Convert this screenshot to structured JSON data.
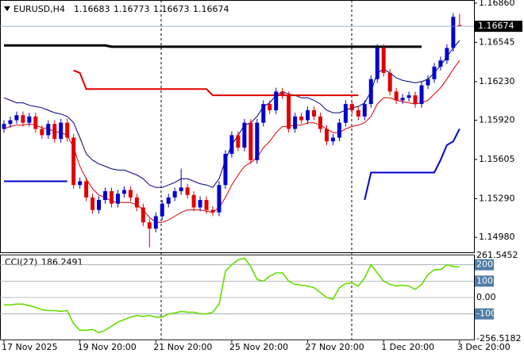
{
  "chart_data": [
    {
      "type": "candlestick",
      "symbol": "EURUSD,H4",
      "up_color": "#0000cc",
      "down_color": "#e00000",
      "ylim": [
        1.1486,
        1.16885
      ],
      "yticks": [
        {
          "value": 1.1686,
          "label": "1.16860"
        },
        {
          "value": 1.16545,
          "label": "1.16545"
        },
        {
          "value": 1.1623,
          "label": "1.16230"
        },
        {
          "value": 1.1592,
          "label": "1.15920"
        },
        {
          "value": 1.15605,
          "label": "1.15605"
        },
        {
          "value": 1.1529,
          "label": "1.15290"
        },
        {
          "value": 1.1498,
          "label": "1.14980"
        }
      ],
      "categories": [
        "17 Nov 2025",
        null,
        null,
        null,
        null,
        null,
        null,
        null,
        null,
        null,
        null,
        null,
        "19 Nov 20:00",
        null,
        null,
        null,
        null,
        null,
        null,
        null,
        null,
        null,
        null,
        null,
        "21 Nov 20:00",
        null,
        null,
        null,
        null,
        null,
        null,
        null,
        null,
        null,
        null,
        null,
        "25 Nov 20:00",
        null,
        null,
        null,
        null,
        null,
        null,
        null,
        null,
        null,
        null,
        null,
        "27 Nov 20:00",
        null,
        null,
        null,
        null,
        null,
        null,
        null,
        null,
        null,
        null,
        null,
        "1 Dec 20:00",
        null,
        null,
        null,
        null,
        null,
        null,
        null,
        null,
        null,
        null,
        null,
        "3 Dec 20:00"
      ],
      "open": [
        1.1585,
        1.1589,
        1.1592,
        1.1596,
        1.159,
        1.1595,
        1.1585,
        1.158,
        1.1589,
        1.1577,
        1.159,
        1.1578,
        1.154,
        1.1543,
        1.153,
        1.152,
        1.1528,
        1.1535,
        1.1525,
        1.1533,
        1.1536,
        1.153,
        1.1522,
        1.151,
        1.1505,
        1.1515,
        1.1525,
        1.153,
        1.1535,
        1.1538,
        1.1532,
        1.1522,
        1.1528,
        1.152,
        1.1518,
        1.154,
        1.1565,
        1.158,
        1.157,
        1.159,
        1.156,
        1.159,
        1.1605,
        1.16,
        1.1615,
        1.1612,
        1.1585,
        1.1595,
        1.1592,
        1.16,
        1.1595,
        1.1585,
        1.1575,
        1.1578,
        1.159,
        1.1605,
        1.16,
        1.1595,
        1.1605,
        1.1625,
        1.165,
        1.163,
        1.1615,
        1.1608,
        1.161,
        1.1612,
        1.1605,
        1.162,
        1.1625,
        1.1635,
        1.164,
        1.165,
        1.16683
      ],
      "high": [
        1.1592,
        1.1595,
        1.1599,
        1.1599,
        1.1598,
        1.1598,
        1.1588,
        1.1592,
        1.1592,
        1.1593,
        1.1593,
        1.1581,
        1.1546,
        1.1546,
        1.1533,
        1.1531,
        1.1538,
        1.1538,
        1.1536,
        1.1539,
        1.1539,
        1.1533,
        1.1525,
        1.1513,
        1.1518,
        1.1528,
        1.1533,
        1.1538,
        1.1553,
        1.1541,
        1.1535,
        1.1531,
        1.1531,
        1.1523,
        1.1543,
        1.1568,
        1.1583,
        1.1583,
        1.1593,
        1.1593,
        1.1593,
        1.1608,
        1.1608,
        1.1618,
        1.1618,
        1.1615,
        1.1598,
        1.1598,
        1.1603,
        1.1603,
        1.1598,
        1.1588,
        1.1581,
        1.1593,
        1.1608,
        1.1608,
        1.1603,
        1.1608,
        1.1628,
        1.1653,
        1.1653,
        1.1633,
        1.1618,
        1.1613,
        1.1615,
        1.1615,
        1.1623,
        1.1628,
        1.1638,
        1.1643,
        1.1653,
        1.1678,
        1.16773
      ],
      "low": [
        1.1582,
        1.1586,
        1.1589,
        1.1587,
        1.1587,
        1.1582,
        1.1577,
        1.1577,
        1.1574,
        1.1574,
        1.1575,
        1.1537,
        1.1537,
        1.1527,
        1.1517,
        1.1517,
        1.1525,
        1.1522,
        1.1522,
        1.153,
        1.1527,
        1.1519,
        1.1507,
        1.149,
        1.1502,
        1.1512,
        1.1522,
        1.1527,
        1.1532,
        1.1529,
        1.1519,
        1.1519,
        1.1517,
        1.1515,
        1.1515,
        1.1537,
        1.1562,
        1.1567,
        1.1567,
        1.1557,
        1.1557,
        1.1587,
        1.1597,
        1.1597,
        1.1609,
        1.1582,
        1.1582,
        1.1589,
        1.1589,
        1.1592,
        1.1582,
        1.1572,
        1.1572,
        1.1575,
        1.1587,
        1.1597,
        1.1592,
        1.1592,
        1.1602,
        1.1622,
        1.1627,
        1.1612,
        1.1605,
        1.1605,
        1.1607,
        1.1602,
        1.1602,
        1.1617,
        1.1622,
        1.1632,
        1.1637,
        1.1647,
        1.16673
      ],
      "close": [
        1.1589,
        1.1592,
        1.1596,
        1.159,
        1.1595,
        1.1585,
        1.158,
        1.1589,
        1.1577,
        1.159,
        1.1578,
        1.154,
        1.1543,
        1.153,
        1.152,
        1.1528,
        1.1535,
        1.1525,
        1.1533,
        1.1536,
        1.153,
        1.1522,
        1.151,
        1.1505,
        1.1515,
        1.1525,
        1.153,
        1.1535,
        1.1538,
        1.1532,
        1.1522,
        1.1528,
        1.152,
        1.1518,
        1.154,
        1.1565,
        1.158,
        1.157,
        1.159,
        1.156,
        1.159,
        1.1605,
        1.16,
        1.1615,
        1.1612,
        1.1585,
        1.1595,
        1.1592,
        1.16,
        1.1595,
        1.1585,
        1.1575,
        1.1578,
        1.159,
        1.1605,
        1.16,
        1.1595,
        1.1605,
        1.1625,
        1.165,
        1.163,
        1.1615,
        1.1608,
        1.161,
        1.1612,
        1.1605,
        1.162,
        1.1625,
        1.1635,
        1.164,
        1.165,
        1.1675,
        1.16674
      ],
      "overlays": [
        {
          "kind": "band",
          "color": "#000080",
          "values": [
            1.161,
            1.1608,
            1.1606,
            1.1606,
            1.1604,
            1.1603,
            1.1602,
            1.16,
            1.1598,
            1.1597,
            1.1595,
            1.159,
            1.1578,
            1.1565,
            1.156,
            1.1557,
            1.1555,
            1.1553,
            1.1552,
            1.1552,
            1.155,
            1.1548,
            1.1545,
            1.154,
            1.1538,
            1.1538,
            1.154,
            1.1542,
            1.1545,
            1.1545,
            1.1543,
            1.1541,
            1.154,
            1.1538,
            1.1545,
            1.156,
            1.1572,
            1.158,
            1.1588,
            1.159,
            1.1595,
            1.1603,
            1.1606,
            1.1612,
            1.1615,
            1.1613,
            1.1612,
            1.161,
            1.161,
            1.1608,
            1.1605,
            1.16,
            1.1598,
            1.1598,
            1.16,
            1.1602,
            1.1603,
            1.1606,
            1.1615,
            1.163,
            1.1633,
            1.163,
            1.1626,
            1.1624,
            1.1623,
            1.1622,
            1.1623,
            1.1625,
            1.163,
            1.1636,
            1.1643,
            1.165,
            1.1656
          ]
        },
        {
          "kind": "band",
          "color": "#dd0000",
          "values": [
            1.1585,
            1.1587,
            1.1588,
            1.1588,
            1.1589,
            1.1588,
            1.1586,
            1.1585,
            1.1583,
            1.1582,
            1.158,
            1.157,
            1.1555,
            1.1545,
            1.1537,
            1.1532,
            1.153,
            1.1527,
            1.1526,
            1.1526,
            1.1526,
            1.1524,
            1.152,
            1.1514,
            1.151,
            1.151,
            1.1512,
            1.1515,
            1.1518,
            1.152,
            1.152,
            1.152,
            1.1519,
            1.1518,
            1.1522,
            1.153,
            1.154,
            1.1548,
            1.1555,
            1.1558,
            1.1562,
            1.157,
            1.1575,
            1.1582,
            1.1587,
            1.1587,
            1.1588,
            1.1588,
            1.159,
            1.159,
            1.1588,
            1.1585,
            1.1582,
            1.1582,
            1.1585,
            1.1587,
            1.1588,
            1.159,
            1.1595,
            1.1605,
            1.161,
            1.161,
            1.1608,
            1.1607,
            1.1606,
            1.1605,
            1.1606,
            1.1608,
            1.1613,
            1.1618,
            1.1625,
            1.1633,
            1.164
          ]
        },
        {
          "kind": "stop",
          "color": "#dd0000",
          "values": [
            null,
            null,
            null,
            null,
            null,
            null,
            null,
            null,
            null,
            null,
            null,
            1.1632,
            1.163,
            1.1617,
            1.1617,
            1.1617,
            1.1617,
            1.1617,
            1.1617,
            1.1617,
            1.1617,
            1.1617,
            1.1617,
            1.1617,
            1.1617,
            1.1617,
            1.1617,
            1.1617,
            1.1617,
            1.1617,
            1.1617,
            1.1617,
            1.1617,
            1.1612,
            1.1612,
            1.1612,
            1.1612,
            1.1612,
            1.1612,
            1.1612,
            1.1612,
            1.1612,
            1.1612,
            1.1612,
            1.1612,
            1.1612,
            1.1612,
            1.1612,
            1.1612,
            1.1612,
            1.1612,
            1.1612,
            1.1612,
            1.1612,
            1.1612,
            1.1612,
            1.1612,
            null,
            null,
            null,
            null,
            null,
            null,
            null,
            null,
            null,
            null,
            null,
            null,
            null,
            null,
            null,
            null
          ]
        },
        {
          "kind": "stop",
          "color": "#0000cc",
          "values": [
            1.1543,
            1.1543,
            1.1543,
            1.1543,
            1.1543,
            1.1543,
            1.1543,
            1.1543,
            1.1543,
            1.1543,
            1.1543,
            null,
            null,
            null,
            null,
            null,
            null,
            null,
            null,
            null,
            null,
            null,
            null,
            null,
            null,
            null,
            null,
            null,
            null,
            null,
            null,
            null,
            null,
            null,
            null,
            null,
            null,
            null,
            null,
            null,
            null,
            null,
            null,
            null,
            null,
            null,
            null,
            null,
            null,
            null,
            null,
            null,
            null,
            null,
            null,
            null,
            null,
            1.1528,
            1.155,
            1.155,
            1.155,
            1.155,
            1.155,
            1.155,
            1.155,
            1.155,
            1.155,
            1.155,
            1.155,
            1.156,
            1.1572,
            1.1575,
            1.1585
          ]
        },
        {
          "kind": "level",
          "color": "#000000",
          "values": [
            1.1652,
            1.1652,
            1.1652,
            1.1652,
            1.1652,
            1.1652,
            1.1652,
            1.1652,
            1.1652,
            1.1652,
            1.1652,
            1.1652,
            1.1652,
            1.1652,
            1.1652,
            1.1652,
            1.1652,
            1.1651,
            1.1651,
            1.1651,
            1.1651,
            1.1651,
            1.1651,
            1.1651,
            1.1651,
            1.1651,
            1.1651,
            1.1651,
            1.1651,
            1.1651,
            1.1651,
            1.1651,
            1.1651,
            1.1651,
            1.1651,
            1.1651,
            1.1651,
            1.1651,
            1.1651,
            1.1651,
            1.1651,
            1.1651,
            1.1651,
            1.1651,
            1.1651,
            1.1651,
            1.1651,
            1.1651,
            1.1651,
            1.1651,
            1.1651,
            1.1651,
            1.1651,
            1.1651,
            1.1651,
            1.1651,
            1.1651,
            1.1651,
            1.1651,
            1.1651,
            1.1651,
            1.1651,
            1.1651,
            1.1651,
            1.1651,
            1.1651,
            1.1651,
            null,
            null,
            null,
            null,
            null,
            null
          ]
        }
      ]
    },
    {
      "type": "line",
      "title": "CCI(27)",
      "ylim": [
        -256.5182,
        261.5452
      ],
      "yticks": [
        261.5452,
        200,
        100,
        {
          "value": 0,
          "label": "0.00"
        },
        -100,
        -256.5182
      ],
      "series": [
        {
          "color": "#66dd00",
          "values": [
            -45,
            -45,
            -40,
            -40,
            -50,
            -60,
            -75,
            -80,
            -80,
            -85,
            -80,
            -160,
            -200,
            -200,
            -195,
            -215,
            -200,
            -175,
            -150,
            -135,
            -120,
            -110,
            -115,
            -110,
            -120,
            -120,
            -100,
            -95,
            -85,
            -90,
            -90,
            -100,
            -100,
            -90,
            -40,
            160,
            200,
            230,
            240,
            190,
            110,
            100,
            130,
            150,
            150,
            100,
            80,
            75,
            70,
            60,
            30,
            0,
            -10,
            60,
            85,
            90,
            70,
            120,
            200,
            150,
            100,
            80,
            70,
            75,
            70,
            50,
            80,
            140,
            170,
            170,
            200,
            190,
            186.2491
          ]
        }
      ]
    }
  ]
}
